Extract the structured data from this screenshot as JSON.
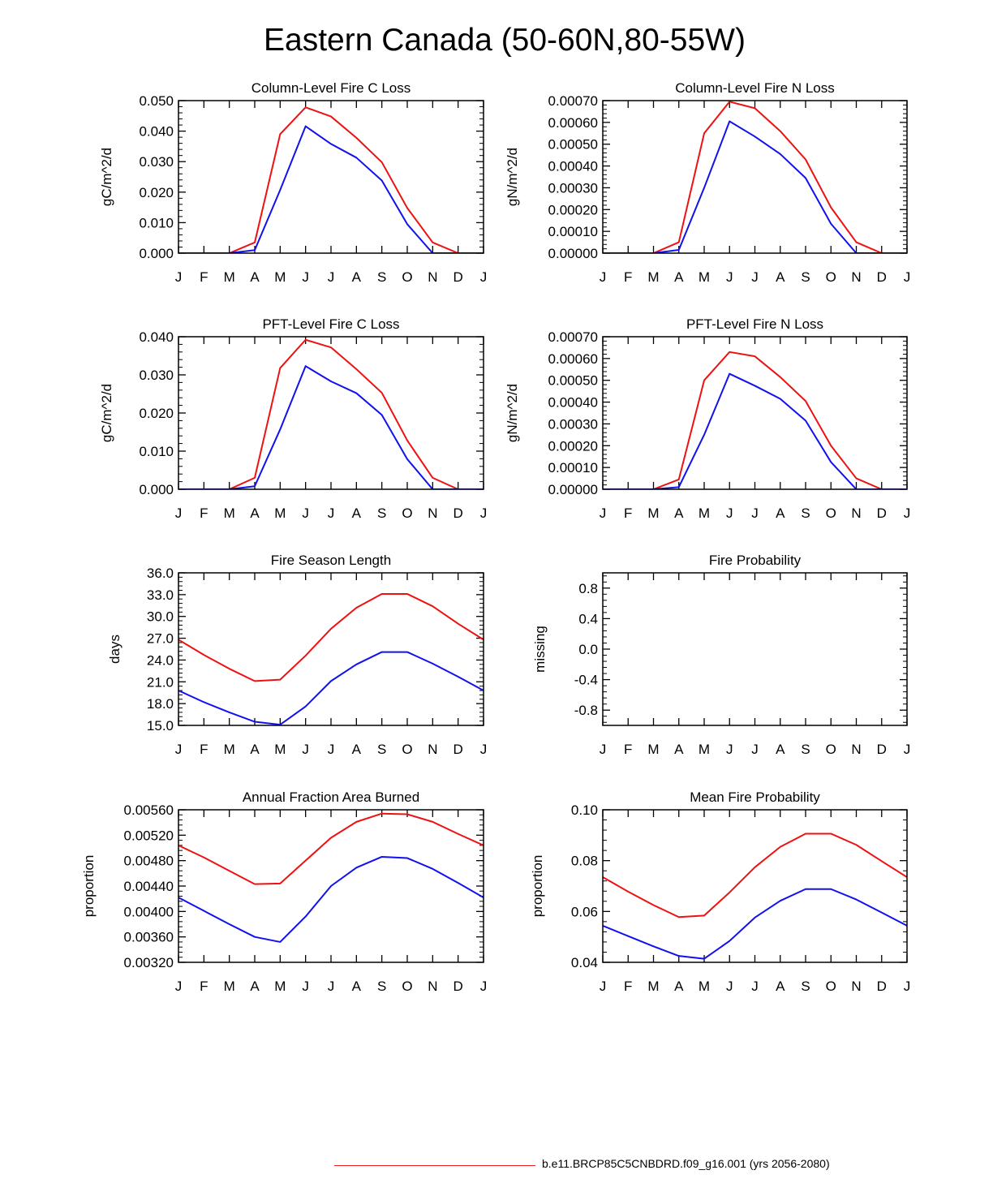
{
  "title": "Eastern Canada (50-60N,80-55W)",
  "months": [
    "J",
    "F",
    "M",
    "A",
    "M",
    "J",
    "J",
    "A",
    "S",
    "O",
    "N",
    "D",
    "J"
  ],
  "colors": {
    "series1": "#ee1111",
    "series2": "#1111ee",
    "axis": "#000000"
  },
  "legend": {
    "label": "b.e11.BRCP85C5CNBDRD.f09_g16.001 (yrs 2056-2080)",
    "color": "#ee1111"
  },
  "chart_data": [
    {
      "type": "line",
      "title": "Column-Level Fire C Loss",
      "ylabel": "gC/m^2/d",
      "ylim": [
        0,
        0.05
      ],
      "yticks": [
        "0.000",
        "0.010",
        "0.020",
        "0.030",
        "0.040",
        "0.050"
      ],
      "series": [
        {
          "name": "series1",
          "values": [
            0,
            0,
            0,
            0.0035,
            0.039,
            0.0478,
            0.0448,
            0.0378,
            0.0298,
            0.0148,
            0.0035,
            0,
            0
          ]
        },
        {
          "name": "series2",
          "values": [
            0,
            0,
            0,
            0.001,
            0.0207,
            0.0416,
            0.0358,
            0.0313,
            0.0238,
            0.0095,
            0,
            0,
            0
          ]
        }
      ]
    },
    {
      "type": "line",
      "title": "Column-Level Fire N Loss",
      "ylabel": "gN/m^2/d",
      "ylim": [
        0,
        0.0007
      ],
      "yticks": [
        "0.00000",
        "0.00010",
        "0.00020",
        "0.00030",
        "0.00040",
        "0.00050",
        "0.00060",
        "0.00070"
      ],
      "series": [
        {
          "name": "series1",
          "values": [
            0,
            0,
            0,
            5e-05,
            0.00055,
            0.000695,
            0.000665,
            0.00056,
            0.00043,
            0.00021,
            5e-05,
            0,
            0
          ]
        },
        {
          "name": "series2",
          "values": [
            0,
            0,
            0,
            1.5e-05,
            0.0003,
            0.000605,
            0.000535,
            0.000455,
            0.000345,
            0.000135,
            0,
            0,
            0
          ]
        }
      ]
    },
    {
      "type": "line",
      "title": "PFT-Level Fire C Loss",
      "ylabel": "gC/m^2/d",
      "ylim": [
        0,
        0.04
      ],
      "yticks": [
        "0.000",
        "0.010",
        "0.020",
        "0.030",
        "0.040"
      ],
      "series": [
        {
          "name": "series1",
          "values": [
            0,
            0,
            0,
            0.003,
            0.0318,
            0.0392,
            0.0372,
            0.0315,
            0.0253,
            0.0128,
            0.003,
            0,
            0
          ]
        },
        {
          "name": "series2",
          "values": [
            0,
            0,
            0,
            0.0008,
            0.0157,
            0.0323,
            0.0283,
            0.0252,
            0.0195,
            0.0079,
            0,
            0,
            0
          ]
        }
      ]
    },
    {
      "type": "line",
      "title": "PFT-Level Fire N Loss",
      "ylabel": "gN/m^2/d",
      "ylim": [
        0,
        0.0007
      ],
      "yticks": [
        "0.00000",
        "0.00010",
        "0.00020",
        "0.00030",
        "0.00040",
        "0.00050",
        "0.00060",
        "0.00070"
      ],
      "series": [
        {
          "name": "series1",
          "values": [
            0,
            0,
            0,
            4.5e-05,
            0.0005,
            0.00063,
            0.00061,
            0.000515,
            0.000405,
            0.0002,
            5e-05,
            0,
            0
          ]
        },
        {
          "name": "series2",
          "values": [
            0,
            0,
            0,
            1e-05,
            0.00025,
            0.00053,
            0.000475,
            0.000415,
            0.000315,
            0.000125,
            0,
            0,
            0
          ]
        }
      ]
    },
    {
      "type": "line",
      "title": "Fire Season Length",
      "ylabel": "days",
      "ylim": [
        15,
        36
      ],
      "yticks": [
        "15.0",
        "18.0",
        "21.0",
        "24.0",
        "27.0",
        "30.0",
        "33.0",
        "36.0"
      ],
      "series": [
        {
          "name": "series1",
          "values": [
            26.8,
            24.7,
            22.8,
            21.1,
            21.3,
            24.6,
            28.3,
            31.2,
            33.1,
            33.1,
            31.4,
            29,
            26.8
          ]
        },
        {
          "name": "series2",
          "values": [
            19.8,
            18.2,
            16.8,
            15.5,
            15.1,
            17.6,
            21.1,
            23.4,
            25.1,
            25.1,
            23.5,
            21.7,
            19.8
          ]
        }
      ]
    },
    {
      "type": "line",
      "title": "Fire Probability",
      "ylabel": "missing",
      "ylim": [
        -1,
        1
      ],
      "yticks": [
        "-0.8",
        "-0.4",
        "0.0",
        "0.4",
        "0.8"
      ],
      "series": []
    },
    {
      "type": "line",
      "title": "Annual Fraction Area Burned",
      "ylabel": "proportion",
      "ylim": [
        0.0032,
        0.0056
      ],
      "yticks": [
        "0.00320",
        "0.00360",
        "0.00400",
        "0.00440",
        "0.00480",
        "0.00520",
        "0.00560"
      ],
      "series": [
        {
          "name": "series1",
          "values": [
            0.00504,
            0.00485,
            0.00464,
            0.00443,
            0.00444,
            0.0048,
            0.00516,
            0.00541,
            0.00554,
            0.00553,
            0.00541,
            0.00522,
            0.00504
          ]
        },
        {
          "name": "series2",
          "values": [
            0.00422,
            0.00401,
            0.0038,
            0.0036,
            0.00352,
            0.00392,
            0.0044,
            0.00469,
            0.00486,
            0.00484,
            0.00467,
            0.00445,
            0.00422
          ]
        }
      ]
    },
    {
      "type": "line",
      "title": "Mean Fire Probability",
      "ylabel": "proportion",
      "ylim": [
        0.04,
        0.1
      ],
      "yticks": [
        "0.04",
        "0.06",
        "0.08",
        "0.10"
      ],
      "series": [
        {
          "name": "series1",
          "values": [
            0.0735,
            0.0678,
            0.0625,
            0.0578,
            0.0584,
            0.0675,
            0.0774,
            0.0854,
            0.0906,
            0.0906,
            0.0862,
            0.0798,
            0.0735
          ]
        },
        {
          "name": "series2",
          "values": [
            0.0544,
            0.0503,
            0.0463,
            0.0425,
            0.0414,
            0.0484,
            0.0576,
            0.0642,
            0.0688,
            0.0688,
            0.0647,
            0.0596,
            0.0544
          ]
        }
      ]
    }
  ]
}
